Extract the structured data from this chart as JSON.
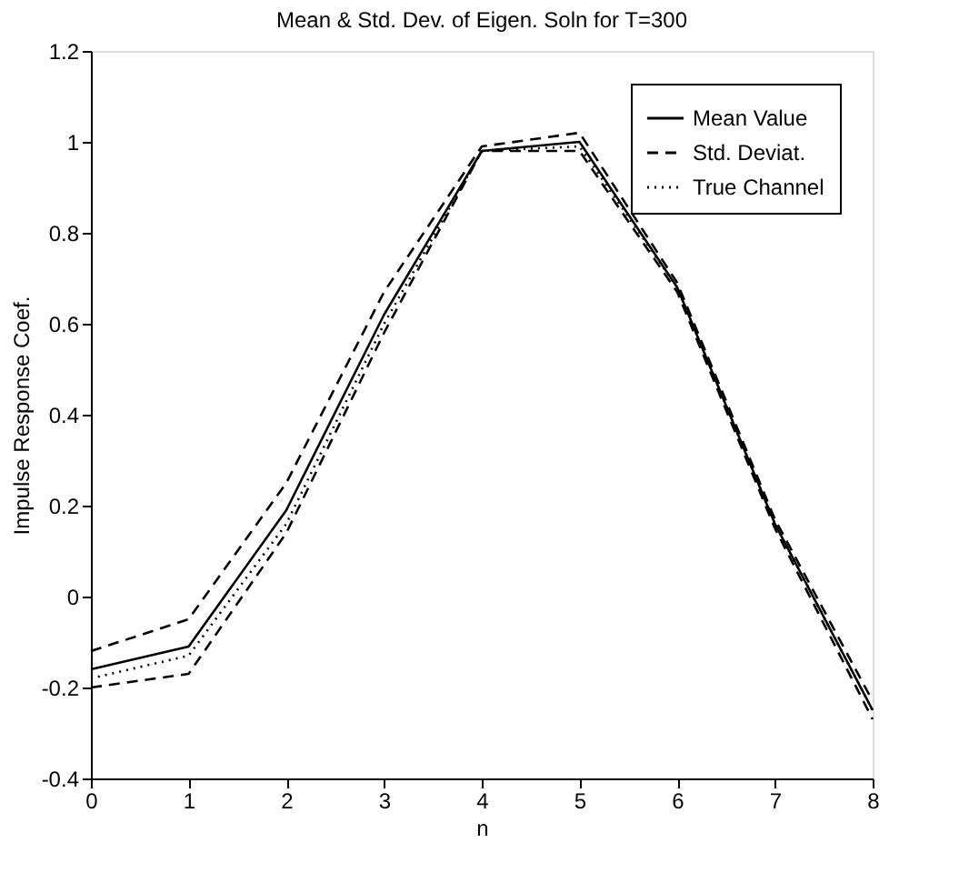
{
  "chart_data": {
    "type": "line",
    "title": "Mean & Std. Dev. of Eigen. Soln for T=300",
    "xlabel": "n",
    "ylabel": "Impulse Response Coef.",
    "x": [
      0,
      1,
      2,
      3,
      4,
      5,
      6,
      7,
      8
    ],
    "series": [
      {
        "name": "Mean Value",
        "color": "#000000",
        "line_style": "solid",
        "values": [
          -0.16,
          -0.11,
          0.19,
          0.62,
          0.98,
          1.0,
          0.68,
          0.16,
          -0.25
        ]
      },
      {
        "name": "Std. Deviat.",
        "color": "#000000",
        "line_style": "dashed",
        "values": [
          -0.12,
          -0.05,
          0.25,
          0.67,
          0.99,
          1.02,
          0.69,
          0.17,
          -0.23
        ]
      },
      {
        "color": "#000000",
        "line_style": "dashed",
        "values": [
          -0.2,
          -0.17,
          0.14,
          0.58,
          0.98,
          0.98,
          0.67,
          0.15,
          -0.27
        ]
      },
      {
        "name": "True Channel",
        "color": "#000000",
        "line_style": "dotted",
        "values": [
          -0.18,
          -0.13,
          0.16,
          0.6,
          0.98,
          0.99,
          0.68,
          0.16,
          -0.25
        ]
      }
    ],
    "xlim": [
      0,
      8
    ],
    "xticks": [
      0,
      1,
      2,
      3,
      4,
      5,
      6,
      7,
      8
    ],
    "ylim": [
      -0.4,
      1.2
    ],
    "yticks": [
      -0.4,
      -0.2,
      0,
      0.2,
      0.4,
      0.6,
      0.8,
      1,
      1.2
    ],
    "grid": false,
    "legend": "top right",
    "marker": "none"
  }
}
